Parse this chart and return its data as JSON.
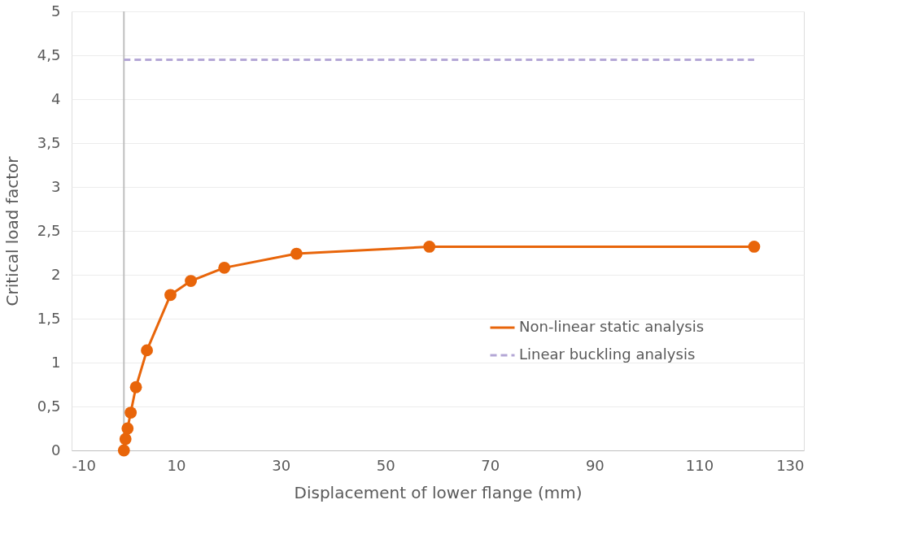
{
  "chart_data": {
    "type": "line",
    "xlabel": "Displacement of lower flange (mm)",
    "ylabel": "Critical load factor",
    "xlim": [
      -10,
      130
    ],
    "xticks": [
      -10,
      10,
      30,
      50,
      70,
      90,
      110,
      130
    ],
    "ylim": [
      0,
      5
    ],
    "yticks": [
      0,
      {
        "value": 0.5,
        "label": "0,5"
      },
      1,
      {
        "value": 1.5,
        "label": "1,5"
      },
      2,
      {
        "value": 2.5,
        "label": "2,5"
      },
      3,
      {
        "value": 3.5,
        "label": "3,5"
      },
      4,
      {
        "value": 4.5,
        "label": "4,5"
      },
      5
    ],
    "grid": "y",
    "legend": "right",
    "ref_lines": [
      {
        "axis": "x",
        "value": 0,
        "color": "#bfbfbf"
      }
    ],
    "series": [
      {
        "name": "Non-linear static analysis",
        "color": "#e8650a",
        "marker": "circle",
        "line_style": "solid",
        "x": [
          0,
          0.3,
          0.7,
          1.3,
          2.3,
          4.4,
          8.9,
          12.8,
          19.2,
          33,
          58.4,
          120.5
        ],
        "values": [
          0,
          0.13,
          0.25,
          0.43,
          0.72,
          1.14,
          1.77,
          1.93,
          2.08,
          2.24,
          2.32,
          2.32
        ]
      },
      {
        "name": "Linear buckling analysis",
        "color": "#b4a7d6",
        "marker": "none",
        "line_style": "dashed",
        "x": [
          0,
          120.5
        ],
        "values": [
          4.45,
          4.45
        ]
      }
    ]
  }
}
